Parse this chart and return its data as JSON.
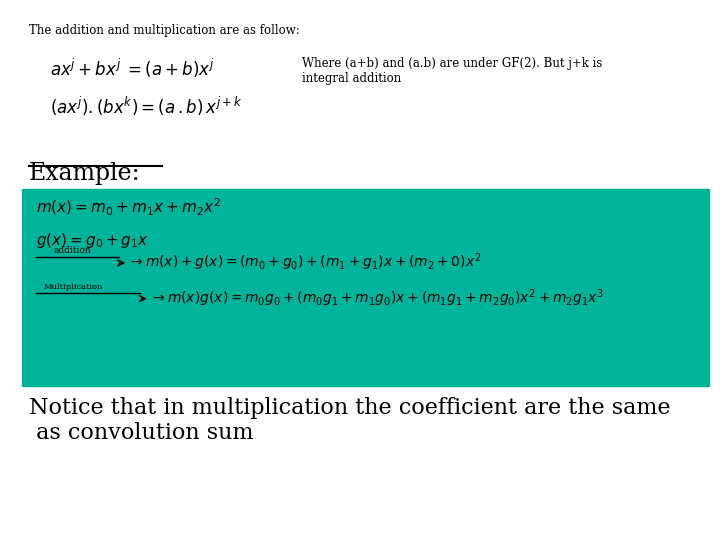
{
  "bg_color": "#ffffff",
  "teal_color": "#00B39B",
  "text_color": "#000000",
  "header_text": "The addition and multiplication are as follow:",
  "eq1": "$ax^{j}+bx^{j}\\;=(a+b)x^{j}$",
  "eq2": "$(ax^{j}).(bx^{k})=(a\\,.b)\\,x^{j+k}$",
  "where_text": "Where (a+b) and (a.b) are under GF(2). But j+k is\nintegral addition",
  "example_label": "Example:",
  "mx_eq": "$m(x)=m_0+m_1x+m_2x^2$",
  "gx_eq": "$g(x)=g_0+g_1x$",
  "addition_label": "addition",
  "addition_eq": "$\\rightarrow m(x)+g(x)=(m_0+g_0)+(m_1+g_1)x+(m_2+0)x^2$",
  "mult_label": "Multiplication",
  "mult_eq": "$\\rightarrow m(x)g(x)=m_0g_0+(m_0g_1+m_1g_0)x+(m_1g_1+m_2g_0)x^2+m_2g_1x^3$",
  "notice_text": "Notice that in multiplication the coefficient are the same\n as convolution sum",
  "figsize": [
    7.2,
    5.4
  ],
  "dpi": 100
}
